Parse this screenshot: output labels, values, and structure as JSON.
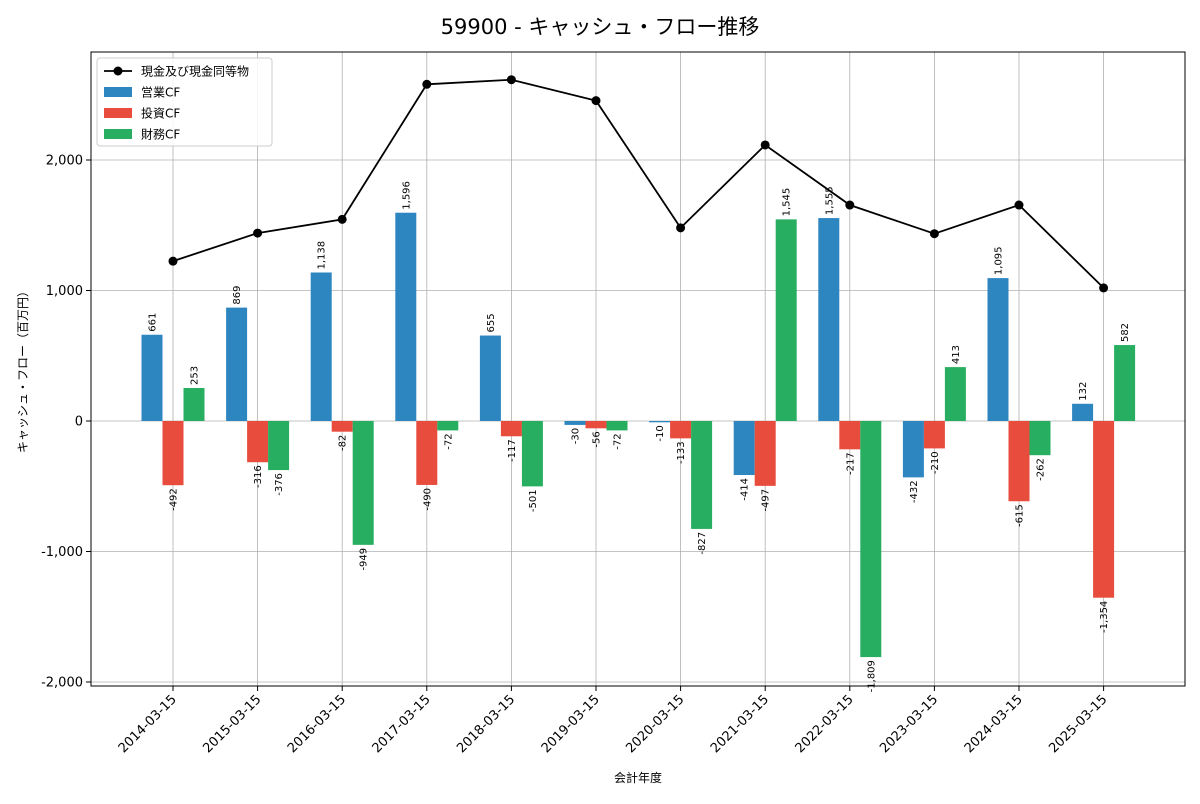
{
  "chart_data": {
    "type": "bar",
    "title": "59900 - キャッシュ・フロー推移",
    "xlabel": "会計年度",
    "ylabel": "キャッシュ・フロー（百万円）",
    "categories": [
      "2014-03-15",
      "2015-03-15",
      "2016-03-15",
      "2017-03-15",
      "2018-03-15",
      "2019-03-15",
      "2020-03-15",
      "2021-03-15",
      "2022-03-15",
      "2023-03-15",
      "2024-03-15",
      "2025-03-15"
    ],
    "ylim": [
      -2000,
      2000
    ],
    "yticks": [
      -2000,
      -1000,
      0,
      1000,
      2000
    ],
    "ytick_labels": [
      "-2,000",
      "-1,000",
      "0",
      "1,000",
      "2,000"
    ],
    "grid": true,
    "legend_position": "upper-left",
    "series": [
      {
        "name": "営業CF",
        "kind": "bar",
        "color": "#2e86c1",
        "values": [
          661,
          869,
          1138,
          1596,
          655,
          -30,
          -10,
          -414,
          1555,
          -432,
          1095,
          132
        ],
        "labels": [
          "661",
          "869",
          "1,138",
          "1,596",
          "655",
          "-30",
          "-10",
          "-414",
          "1,555",
          "-432",
          "1,095",
          "132"
        ]
      },
      {
        "name": "投資CF",
        "kind": "bar",
        "color": "#e74c3c",
        "values": [
          -492,
          -316,
          -82,
          -490,
          -117,
          -56,
          -133,
          -497,
          -217,
          -210,
          -615,
          -1354
        ],
        "labels": [
          "-492",
          "-316",
          "-82",
          "-490",
          "-117",
          "-56",
          "-133",
          "-497",
          "-217",
          "-210",
          "-615",
          "-1,354"
        ]
      },
      {
        "name": "財務CF",
        "kind": "bar",
        "color": "#27ae60",
        "values": [
          253,
          -376,
          -949,
          -72,
          -501,
          -72,
          -827,
          1545,
          -1809,
          413,
          -262,
          582
        ],
        "labels": [
          "253",
          "-376",
          "-949",
          "-72",
          "-501",
          "-72",
          "-827",
          "1,545",
          "-1,809",
          "413",
          "-262",
          "582"
        ]
      },
      {
        "name": "現金及び現金同等物",
        "kind": "line",
        "color": "#000000",
        "values": [
          1225,
          1440,
          1545,
          2580,
          2615,
          2455,
          1480,
          2115,
          1655,
          1435,
          1655,
          1020
        ]
      }
    ]
  }
}
